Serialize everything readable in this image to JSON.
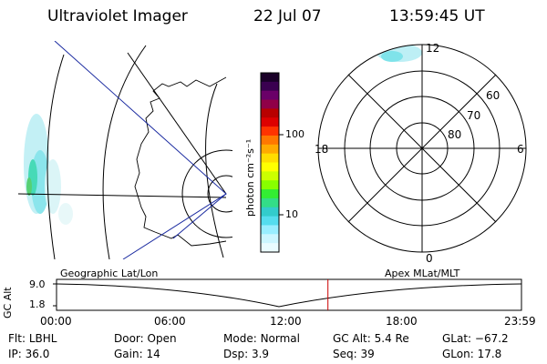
{
  "header": {
    "title": "Ultraviolet Imager",
    "date": "22 Jul 07",
    "time": "13:59:45 UT"
  },
  "colorbar": {
    "unit_label": "photon cm⁻²s⁻¹",
    "ticks": [
      "100",
      "10"
    ],
    "colors": [
      "#1a0028",
      "#3a0050",
      "#6a0068",
      "#900048",
      "#b80000",
      "#dd0000",
      "#ff3300",
      "#ff7700",
      "#ffaa00",
      "#ffdd00",
      "#ffff00",
      "#ccff00",
      "#88ff00",
      "#33ee33",
      "#33dd88",
      "#33cccc",
      "#55ddee",
      "#99eeff",
      "#ccf6ff",
      "#eafcff"
    ]
  },
  "polar_plot": {
    "lat_labels": [
      "60",
      "70",
      "80"
    ],
    "mlt_labels": [
      "12",
      "18",
      "6",
      "0"
    ]
  },
  "timeline": {
    "y_axis_label": "GC Alt",
    "y_ticks": [
      "9.0",
      "1.8"
    ],
    "left_title": "Geographic Lat/Lon",
    "right_title": "Apex MLat/MLT",
    "x_ticks": [
      "00:00",
      "06:00",
      "12:00",
      "18:00",
      "23:59"
    ],
    "current_time_hours": 14.0
  },
  "info": {
    "row1": [
      {
        "key": "Flt:",
        "value": "LBHL"
      },
      {
        "key": "Door:",
        "value": "Open"
      },
      {
        "key": "Mode:",
        "value": "Normal"
      },
      {
        "key": "GC Alt:",
        "value": "5.4 Re"
      },
      {
        "key": "GLat:",
        "value": "−67.2"
      }
    ],
    "row2": [
      {
        "key": "IP:",
        "value": "36.0"
      },
      {
        "key": "Gain:",
        "value": "14"
      },
      {
        "key": "Dsp:",
        "value": "3.9"
      },
      {
        "key": "Seq:",
        "value": "39"
      },
      {
        "key": "GLon:",
        "value": "17.8"
      }
    ]
  }
}
